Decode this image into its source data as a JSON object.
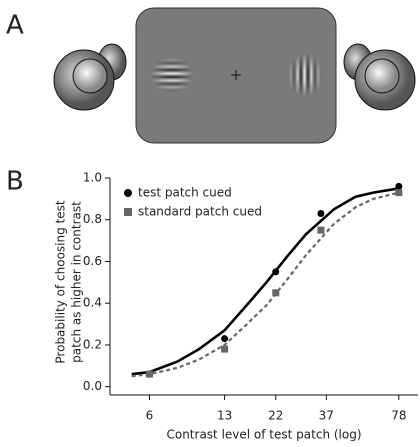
{
  "panel_labels": {
    "a": "A",
    "b": "B"
  },
  "chart_data": {
    "type": "line",
    "ylabel": [
      "Probability of choosing test",
      "patch as higher in contrast"
    ],
    "xlabel": "Contrast level of test patch (log)",
    "x": [
      6,
      13,
      22,
      35,
      78
    ],
    "fit_x": [
      5,
      6,
      8,
      10,
      13,
      16,
      20,
      25,
      30,
      40,
      50,
      60,
      78
    ],
    "series": [
      {
        "name": "test patch cued",
        "color": "#000000",
        "marker": "circle",
        "dashed": false,
        "values": [
          0.06,
          0.23,
          0.55,
          0.83,
          0.96
        ],
        "fit_values": [
          0.06,
          0.07,
          0.12,
          0.18,
          0.27,
          0.38,
          0.5,
          0.63,
          0.73,
          0.85,
          0.91,
          0.93,
          0.95
        ]
      },
      {
        "name": "standard patch cued",
        "color": "#666666",
        "marker": "square",
        "dashed": true,
        "values": [
          0.06,
          0.18,
          0.45,
          0.75,
          0.93
        ],
        "fit_values": [
          0.05,
          0.06,
          0.09,
          0.13,
          0.2,
          0.29,
          0.39,
          0.52,
          0.63,
          0.78,
          0.86,
          0.9,
          0.93
        ]
      }
    ],
    "log_x": true,
    "xlim": [
      4,
      95
    ],
    "xticks": [
      6,
      13,
      22,
      37,
      78
    ],
    "ylim": [
      -0.04,
      1.0
    ],
    "yticks": [
      {
        "value": 0,
        "label": "0.0"
      },
      0.2,
      0.4,
      0.6,
      0.8,
      {
        "value": 1,
        "label": "1.0"
      }
    ],
    "legend": "upper-left"
  }
}
